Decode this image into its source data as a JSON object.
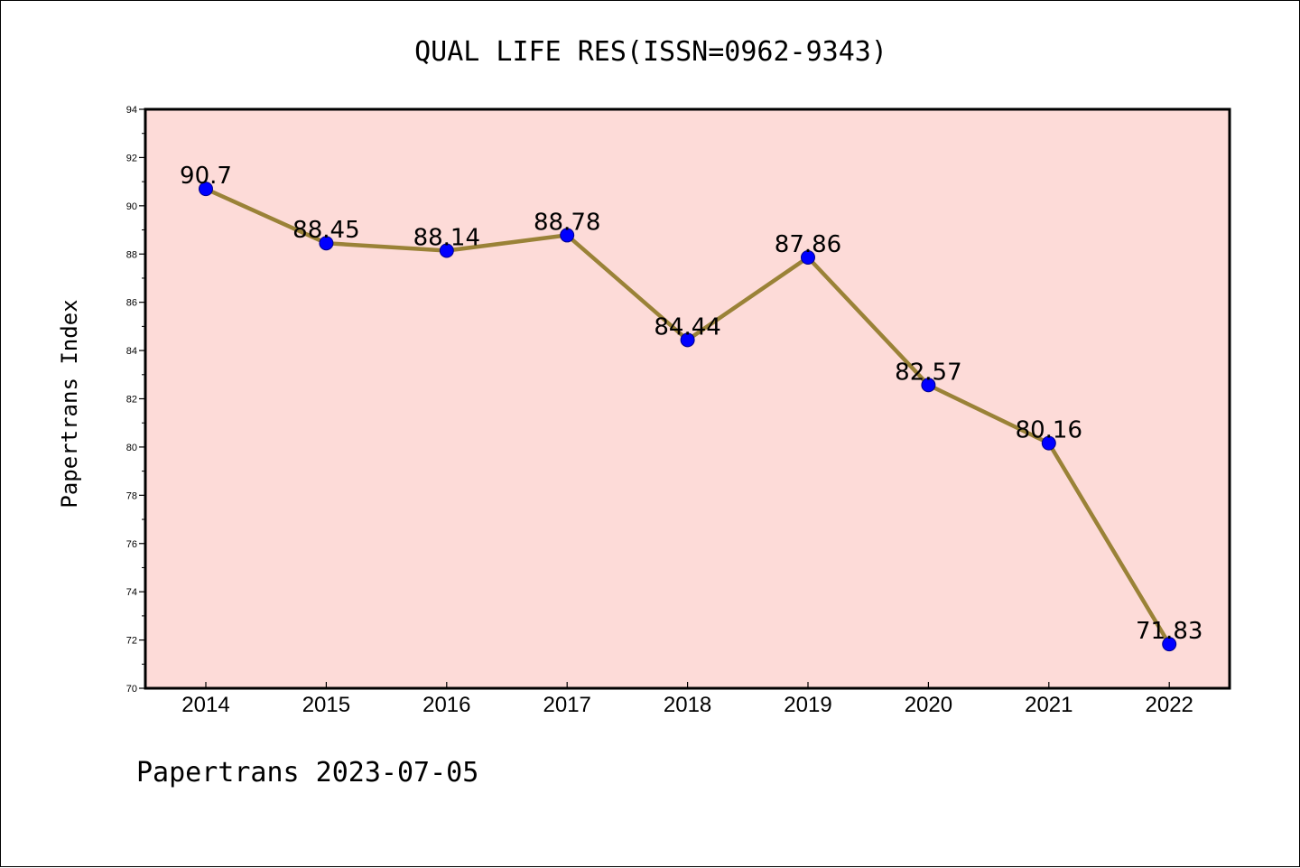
{
  "chart_data": {
    "type": "line",
    "title": "QUAL LIFE RES(ISSN=0962-9343)",
    "ylabel": "Papertrans Index",
    "xlabel": "",
    "categories": [
      "2014",
      "2015",
      "2016",
      "2017",
      "2018",
      "2019",
      "2020",
      "2021",
      "2022"
    ],
    "values": [
      90.7,
      88.45,
      88.14,
      88.78,
      84.44,
      87.86,
      82.57,
      80.16,
      71.83
    ],
    "data_labels": [
      "90.7",
      "88.45",
      "88.14",
      "88.78",
      "84.44",
      "87.86",
      "82.57",
      "80.16",
      "71.83"
    ],
    "ylim": [
      70,
      94
    ],
    "yticks": [
      "70",
      "72",
      "74",
      "76",
      "78",
      "80",
      "82",
      "84",
      "86",
      "88",
      "90",
      "92",
      "94"
    ],
    "grid": false,
    "line_color": "#9a8237",
    "marker_color": "#0000ff",
    "plot_background": "#fddbd8"
  },
  "footer": {
    "text": "Papertrans 2023-07-05"
  }
}
